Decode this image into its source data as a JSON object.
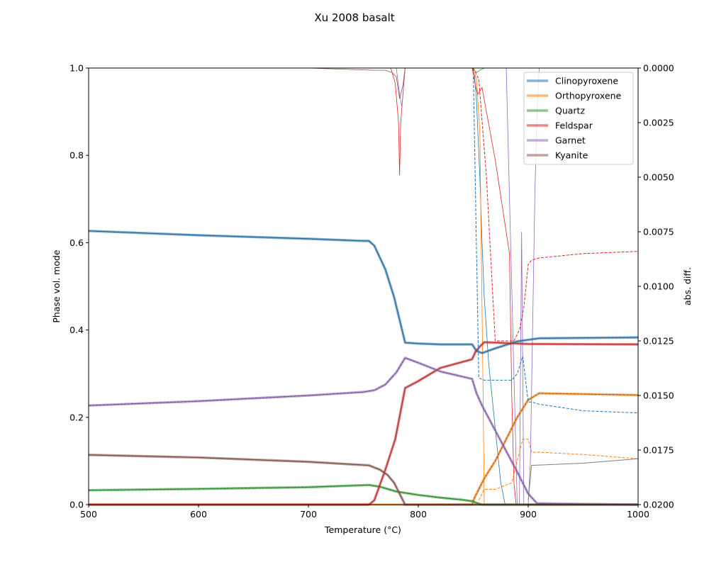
{
  "chart_data": {
    "type": "line",
    "title": "Xu 2008 basalt",
    "xlabel": "Temperature (°C)",
    "ylabel": "Phase vol. mode",
    "y2label": "abs. diff.",
    "xlim": [
      500,
      1000
    ],
    "ylim": [
      0,
      1.0
    ],
    "y2lim": [
      0.02,
      0.0
    ],
    "xticks": [
      "500",
      "600",
      "700",
      "800",
      "900",
      "1000"
    ],
    "yticks": [
      "0.0",
      "0.2",
      "0.4",
      "0.6",
      "0.8",
      "1.0"
    ],
    "y2ticks": [
      "0.0000",
      "0.0025",
      "0.0050",
      "0.0075",
      "0.0100",
      "0.0125",
      "0.0150",
      "0.0175",
      "0.0200"
    ],
    "legend_position": "top-right",
    "series": [
      {
        "name": "Clinopyroxene",
        "color": "#1f77b4",
        "x": [
          500,
          600,
          700,
          750,
          755,
          760,
          770,
          778,
          788,
          800,
          820,
          849,
          853,
          858,
          870,
          890,
          910,
          1000
        ],
        "values": [
          0.627,
          0.617,
          0.609,
          0.604,
          0.604,
          0.593,
          0.539,
          0.475,
          0.371,
          0.369,
          0.367,
          0.367,
          0.352,
          0.347,
          0.358,
          0.374,
          0.381,
          0.383
        ]
      },
      {
        "name": "Orthopyroxene",
        "color": "#ff7f0e",
        "x": [
          500,
          849,
          851,
          860,
          870,
          880,
          890,
          900,
          910,
          1000
        ],
        "values": [
          0.0,
          0.0,
          0.015,
          0.06,
          0.1,
          0.15,
          0.2,
          0.24,
          0.255,
          0.251
        ]
      },
      {
        "name": "Quartz",
        "color": "#2ca02c",
        "x": [
          500,
          600,
          700,
          755,
          765,
          780,
          800,
          820,
          840,
          849,
          853,
          858,
          1000
        ],
        "values": [
          0.033,
          0.036,
          0.04,
          0.045,
          0.041,
          0.03,
          0.022,
          0.016,
          0.011,
          0.008,
          0.004,
          0.0,
          0.0
        ]
      },
      {
        "name": "Feldspar",
        "color": "#d62728",
        "x": [
          500,
          755,
          760,
          770,
          779,
          788,
          800,
          820,
          849,
          852,
          856,
          860,
          900,
          1000
        ],
        "values": [
          0.0,
          0.0,
          0.01,
          0.08,
          0.15,
          0.267,
          0.283,
          0.313,
          0.333,
          0.35,
          0.362,
          0.372,
          0.368,
          0.367
        ]
      },
      {
        "name": "Garnet",
        "color": "#9467bd",
        "x": [
          500,
          600,
          700,
          750,
          760,
          770,
          780,
          788,
          800,
          820,
          849,
          853,
          858,
          870,
          890,
          900,
          908,
          1000
        ],
        "values": [
          0.227,
          0.237,
          0.25,
          0.258,
          0.262,
          0.275,
          0.303,
          0.336,
          0.325,
          0.305,
          0.288,
          0.255,
          0.227,
          0.17,
          0.075,
          0.025,
          0.003,
          0.0
        ]
      },
      {
        "name": "Kyanite",
        "color": "#8c564b",
        "x": [
          500,
          600,
          700,
          755,
          765,
          772,
          778,
          783,
          788,
          1000
        ],
        "values": [
          0.114,
          0.108,
          0.098,
          0.09,
          0.08,
          0.068,
          0.05,
          0.025,
          0.0,
          0.0
        ]
      }
    ],
    "diff_series": [
      {
        "color": "#1f77b4",
        "x": [
          500,
          700,
          849,
          851,
          853,
          856,
          858,
          860,
          864,
          870,
          875,
          879,
          880,
          1000
        ],
        "values": [
          0.0,
          0.0,
          0.0,
          0.0002,
          0.0015,
          0.005,
          0.008,
          0.0105,
          0.0135,
          0.0165,
          0.019,
          0.02,
          0.02,
          0.02
        ]
      },
      {
        "color": "#ff7f0e",
        "x": [
          500,
          849,
          853,
          856,
          859,
          860,
          1000
        ],
        "values": [
          0.0,
          0.0,
          0.0005,
          0.003,
          0.015,
          0.02,
          0.02
        ]
      },
      {
        "color": "#2ca02c",
        "x": [
          500,
          849,
          853,
          856,
          860,
          1000
        ],
        "values": [
          0.0,
          0.0,
          0.0002,
          0.0001,
          0.0,
          0.0
        ]
      },
      {
        "color": "#d62728",
        "x": [
          500,
          700,
          775,
          779,
          782,
          783,
          784,
          786,
          788,
          800,
          849,
          852,
          854,
          858,
          870,
          883,
          885,
          887,
          889,
          890,
          1000
        ],
        "values": [
          0.0,
          0.0,
          0.0,
          0.0007,
          0.0025,
          0.0049,
          0.0025,
          0.0012,
          0.0,
          0.0,
          0.0,
          0.0008,
          0.0012,
          0.0009,
          0.0042,
          0.0085,
          0.015,
          0.019,
          0.02,
          0.02,
          0.02
        ]
      },
      {
        "color": "#9467bd",
        "x": [
          500,
          700,
          780,
          783,
          785,
          788,
          800,
          849,
          853,
          880,
          890,
          892,
          894,
          896,
          898,
          900,
          902,
          904,
          906,
          908,
          910,
          1000
        ],
        "values": [
          0.0,
          0.0,
          0.0,
          0.0012,
          0.0018,
          0.0,
          0.0,
          0.0,
          0.0,
          0.0,
          0.02,
          0.02,
          0.0075,
          0.02,
          0.02,
          0.02,
          0.018,
          0.012,
          0.006,
          0.002,
          0.0,
          0.0
        ]
      },
      {
        "color": "#8c564b",
        "x": [
          500,
          700,
          760,
          765,
          770,
          776,
          780,
          783,
          786,
          788,
          800,
          1000
        ],
        "values": [
          0.0,
          0.0,
          0.0001,
          0.0001,
          0.0001,
          0.0002,
          0.0004,
          0.0014,
          0.0008,
          0.0,
          0.0,
          0.0
        ]
      }
    ],
    "abs_series": [
      {
        "color": "#d62728",
        "x": [
          850,
          855,
          862,
          870,
          880,
          887,
          892,
          896,
          900,
          903,
          910,
          950,
          1000
        ],
        "values": [
          0.0,
          0.0005,
          0.005,
          0.0125,
          0.0125,
          0.0125,
          0.012,
          0.011,
          0.009,
          0.0088,
          0.0087,
          0.0085,
          0.0084
        ]
      },
      {
        "color": "#1f77b4",
        "x": [
          850,
          855,
          860,
          870,
          880,
          885,
          890,
          895,
          900,
          903,
          910,
          950,
          1000
        ],
        "values": [
          0.0,
          0.0142,
          0.0143,
          0.0143,
          0.0143,
          0.0143,
          0.014,
          0.0132,
          0.0153,
          0.0153,
          0.0154,
          0.0157,
          0.0158
        ]
      },
      {
        "color": "#ff7f0e",
        "x": [
          855,
          860,
          870,
          885,
          895,
          900,
          903,
          910,
          950,
          1000
        ],
        "values": [
          0.0198,
          0.0193,
          0.0193,
          0.019,
          0.017,
          0.017,
          0.0176,
          0.0176,
          0.0177,
          0.0179
        ]
      },
      {
        "color": "#7f7f7f",
        "x": [
          900,
          903,
          950,
          1000
        ],
        "values": [
          0.0198,
          0.0182,
          0.0181,
          0.0179
        ]
      }
    ],
    "legend": [
      "Clinopyroxene",
      "Orthopyroxene",
      "Quartz",
      "Feldspar",
      "Garnet",
      "Kyanite"
    ]
  }
}
